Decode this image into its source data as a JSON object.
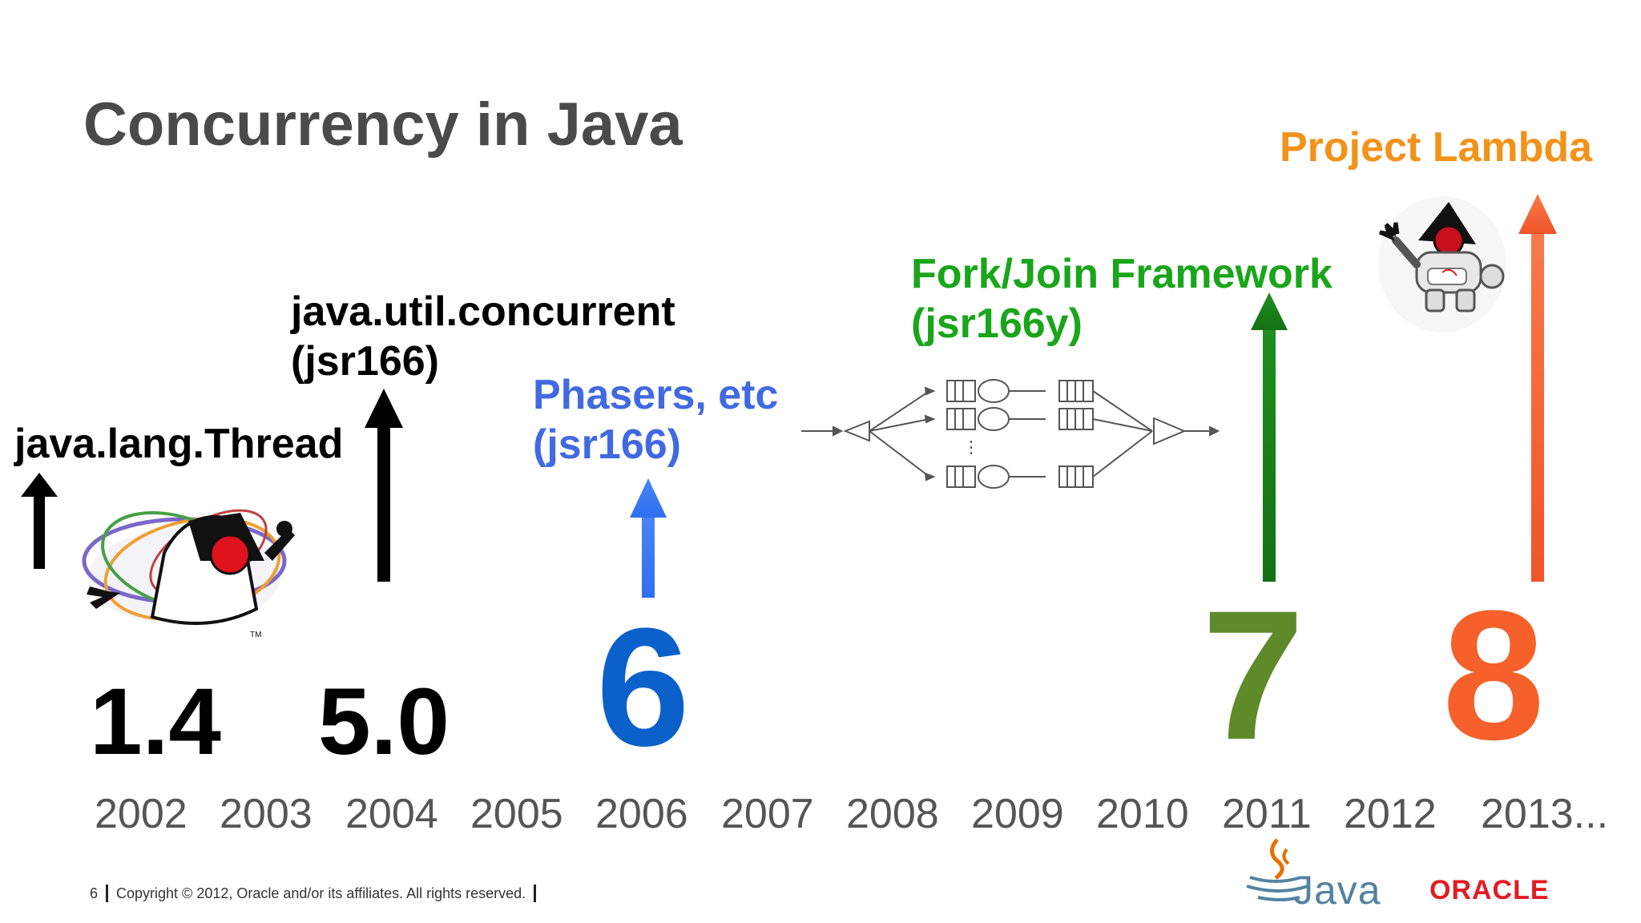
{
  "slide": {
    "title": "Concurrency in Java",
    "page_number": "6",
    "copyright": "Copyright © 2012, Oracle and/or its affiliates. All rights reserved."
  },
  "milestones": [
    {
      "version": "1.4",
      "label_line1": "java.lang.Thread",
      "label_line2": "",
      "color": "#000000",
      "arrow_color": "#000000"
    },
    {
      "version": "5.0",
      "label_line1": "java.util.concurrent",
      "label_line2": "(jsr166)",
      "color": "#000000",
      "arrow_color": "#000000"
    },
    {
      "version": "6",
      "label_line1": "Phasers, etc",
      "label_line2": "(jsr166)",
      "color": "#0b61c9",
      "label_color": "#4169e1",
      "arrow_color": "#3b6ef5"
    },
    {
      "version": "7",
      "label_line1": "Fork/Join Framework",
      "label_line2": "(jsr166y)",
      "color": "#5e8a2a",
      "label_color": "#1aa51a",
      "arrow_color": "#1a7a1a"
    },
    {
      "version": "8",
      "label_line1": "Project Lambda",
      "label_line2": "",
      "color": "#f5602b",
      "label_color": "#f29219",
      "arrow_color": "#f5602b"
    }
  ],
  "years": [
    "2002",
    "2003",
    "2004",
    "2005",
    "2006",
    "2007",
    "2008",
    "2009",
    "2010",
    "2011",
    "2012",
    "2013..."
  ],
  "logos": {
    "java": "Java",
    "oracle": "ORACLE"
  },
  "icons": [
    "duke-juggling-icon",
    "duke-astronaut-icon",
    "fork-join-diagram-icon",
    "java-cup-icon"
  ]
}
